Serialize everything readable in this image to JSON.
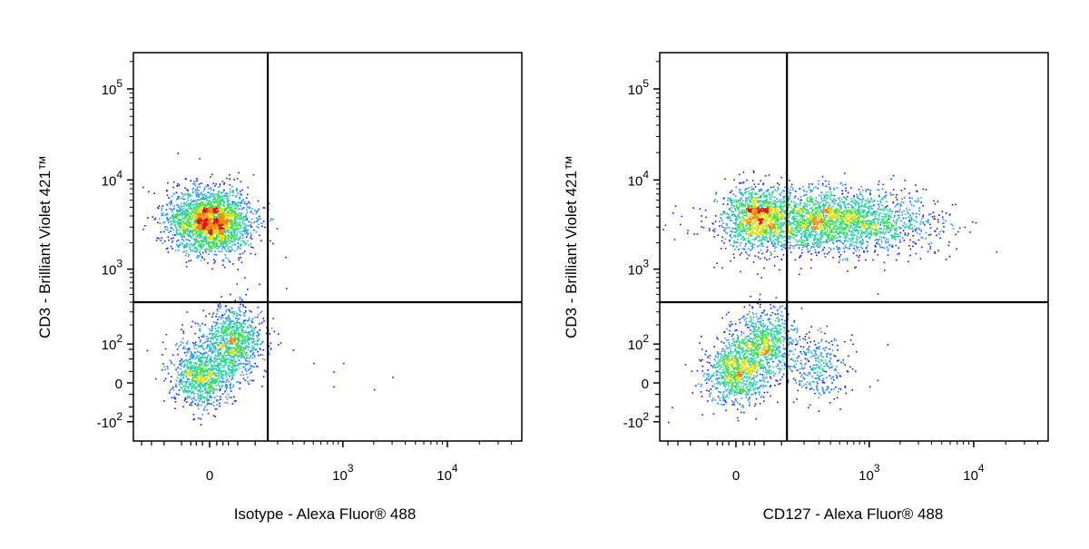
{
  "chart_data": [
    {
      "type": "scatter",
      "subtype": "flow-cytometry-density-dot-plot",
      "xlabel": "Isotype - Alexa Fluor® 488",
      "ylabel": "CD3 - Brilliant Violet 421™",
      "x_scale": "biexponential",
      "y_scale": "biexponential",
      "xlim": [
        -250,
        50000
      ],
      "ylim": [
        -200,
        250000
      ],
      "x_ticks": [
        {
          "base": "0",
          "exp": "",
          "value": 0
        },
        {
          "base": "10",
          "exp": "3",
          "value": 1000
        },
        {
          "base": "10",
          "exp": "4",
          "value": 10000
        }
      ],
      "y_ticks": [
        {
          "base": "10",
          "exp": "5",
          "value": 100000
        },
        {
          "base": "10",
          "exp": "4",
          "value": 10000
        },
        {
          "base": "10",
          "exp": "3",
          "value": 1000
        },
        {
          "base": "10",
          "exp": "2",
          "value": 100
        },
        {
          "base": "0",
          "exp": "",
          "value": 0
        },
        {
          "base": "-10",
          "exp": "2",
          "value": -100
        }
      ],
      "gates": {
        "x": 150,
        "y": 400
      },
      "populations": [
        {
          "x": 0,
          "y": 3500,
          "count": 2400
        },
        {
          "x": 40,
          "y": 120,
          "count": 900
        },
        {
          "x": -10,
          "y": 15,
          "count": 1000
        }
      ],
      "outliers": [
        [
          200,
          150
        ],
        [
          300,
          80
        ],
        [
          500,
          40
        ],
        [
          800,
          20
        ],
        [
          1000,
          40
        ],
        [
          800,
          -5
        ],
        [
          2000,
          -10
        ],
        [
          3000,
          10
        ],
        [
          250,
          600
        ],
        [
          200,
          100
        ]
      ],
      "grid": false,
      "legend": "none"
    },
    {
      "type": "scatter",
      "subtype": "flow-cytometry-density-dot-plot",
      "xlabel": "CD127 - Alexa Fluor® 488",
      "ylabel": "CD3 - Brilliant Violet 421™",
      "x_scale": "biexponential",
      "y_scale": "biexponential",
      "xlim": [
        -250,
        50000
      ],
      "ylim": [
        -200,
        250000
      ],
      "x_ticks": [
        {
          "base": "0",
          "exp": "",
          "value": 0
        },
        {
          "base": "10",
          "exp": "3",
          "value": 1000
        },
        {
          "base": "10",
          "exp": "4",
          "value": 10000
        }
      ],
      "y_ticks": [
        {
          "base": "10",
          "exp": "5",
          "value": 100000
        },
        {
          "base": "10",
          "exp": "4",
          "value": 10000
        },
        {
          "base": "10",
          "exp": "3",
          "value": 1000
        },
        {
          "base": "10",
          "exp": "2",
          "value": 100
        },
        {
          "base": "0",
          "exp": "",
          "value": 0
        },
        {
          "base": "-10",
          "exp": "2",
          "value": -100
        }
      ],
      "gates": {
        "x": 120,
        "y": 400
      },
      "populations": [
        {
          "x": 30,
          "y": 3800,
          "count": 900
        },
        {
          "x": 400,
          "y": 3500,
          "count": 2600
        },
        {
          "x": 50,
          "y": 110,
          "count": 750
        },
        {
          "x": 0,
          "y": 20,
          "count": 900
        },
        {
          "x": 300,
          "y": 30,
          "count": 300
        }
      ],
      "outliers": [
        [
          1500,
          100
        ],
        [
          -200,
          -100
        ],
        [
          -180,
          -50
        ],
        [
          1000,
          -5
        ],
        [
          1200,
          5
        ]
      ],
      "grid": false,
      "legend": "none"
    }
  ]
}
